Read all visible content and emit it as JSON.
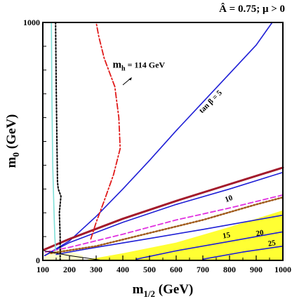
{
  "chart_data": {
    "type": "line",
    "title": "Â = 0.75; μ > 0",
    "xlabel": "m1/2 (GeV)",
    "ylabel": "m0 (GeV)",
    "xlim": [
      100,
      1000
    ],
    "ylim": [
      0,
      1000
    ],
    "x_ticks": [
      "100",
      "200",
      "300",
      "400",
      "500",
      "600",
      "700",
      "800",
      "900",
      "1000"
    ],
    "y_ticks": [
      "0",
      "1000"
    ],
    "grid": false,
    "legend": "none",
    "series": [
      {
        "name": "tan β = 5",
        "color": "#1f1fd6",
        "style": "solid",
        "points": [
          [
            107,
            20
          ],
          [
            200,
            82
          ],
          [
            300,
            185
          ],
          [
            400,
            300
          ],
          [
            500,
            420
          ],
          [
            600,
            545
          ],
          [
            700,
            665
          ],
          [
            800,
            785
          ],
          [
            900,
            905
          ],
          [
            960,
            1000
          ]
        ]
      },
      {
        "name": "10",
        "color": "#1f1fd6",
        "style": "solid",
        "points": [
          [
            107,
            20
          ],
          [
            200,
            75
          ],
          [
            400,
            160
          ],
          [
            600,
            235
          ],
          [
            800,
            300
          ],
          [
            1000,
            370
          ]
        ]
      },
      {
        "name": "15",
        "color": "#1f1fd6",
        "style": "solid",
        "points": [
          [
            150,
            25
          ],
          [
            300,
            55
          ],
          [
            500,
            92
          ],
          [
            700,
            130
          ],
          [
            1000,
            190
          ]
        ]
      },
      {
        "name": "20",
        "color": "#1f1fd6",
        "style": "solid",
        "points": [
          [
            450,
            5
          ],
          [
            600,
            40
          ],
          [
            800,
            80
          ],
          [
            1000,
            120
          ]
        ]
      },
      {
        "name": "25",
        "color": "#1f1fd6",
        "style": "solid",
        "points": [
          [
            700,
            5
          ],
          [
            850,
            35
          ],
          [
            1000,
            60
          ]
        ]
      },
      {
        "name": "",
        "color": "#a31b2c",
        "style": "solid-thick",
        "points": [
          [
            105,
            45
          ],
          [
            200,
            90
          ],
          [
            400,
            175
          ],
          [
            600,
            250
          ],
          [
            800,
            320
          ],
          [
            1000,
            390
          ]
        ]
      },
      {
        "name": "",
        "color": "#e030e0",
        "style": "dashed",
        "points": [
          [
            110,
            35
          ],
          [
            200,
            55
          ],
          [
            400,
            110
          ],
          [
            600,
            170
          ],
          [
            800,
            220
          ],
          [
            1000,
            275
          ]
        ]
      },
      {
        "name": "",
        "color": "#a05a1a",
        "style": "dotted",
        "points": [
          [
            130,
            30
          ],
          [
            300,
            60
          ],
          [
            500,
            115
          ],
          [
            700,
            170
          ],
          [
            900,
            235
          ],
          [
            1000,
            265
          ]
        ]
      },
      {
        "name": "mh = 114 GeV",
        "color": "#e01a1a",
        "style": "dashdot",
        "points": [
          [
            280,
            90
          ],
          [
            300,
            160
          ],
          [
            330,
            250
          ],
          [
            365,
            360
          ],
          [
            390,
            470
          ],
          [
            385,
            600
          ],
          [
            370,
            730
          ],
          [
            330,
            850
          ],
          [
            310,
            940
          ],
          [
            300,
            1000
          ]
        ]
      },
      {
        "name": "",
        "color": "#000000",
        "style": "dotted",
        "points": [
          [
            148,
            1000
          ],
          [
            150,
            750
          ],
          [
            153,
            500
          ],
          [
            155,
            330
          ],
          [
            158,
            300
          ],
          [
            168,
            270
          ],
          [
            162,
            200
          ],
          [
            165,
            100
          ],
          [
            165,
            0
          ]
        ]
      },
      {
        "name": "",
        "color": "#7fe0d8",
        "style": "solid",
        "points": [
          [
            132,
            1000
          ],
          [
            134,
            700
          ],
          [
            137,
            400
          ],
          [
            142,
            200
          ],
          [
            145,
            100
          ],
          [
            148,
            40
          ]
        ]
      },
      {
        "name": "",
        "color": "#000000",
        "style": "thin",
        "points": [
          [
            105,
            40
          ],
          [
            200,
            20
          ],
          [
            325,
            0
          ]
        ]
      }
    ],
    "regions": [
      {
        "name": "",
        "color": "#ffff33",
        "points": [
          [
            250,
            0
          ],
          [
            400,
            30
          ],
          [
            600,
            75
          ],
          [
            800,
            140
          ],
          [
            1000,
            210
          ],
          [
            1000,
            0
          ]
        ]
      },
      {
        "name": "",
        "color": "#ffffcc",
        "points": [
          [
            105,
            0
          ],
          [
            105,
            25
          ],
          [
            160,
            55
          ],
          [
            250,
            20
          ],
          [
            250,
            0
          ]
        ]
      }
    ],
    "annotations": [
      {
        "text": "tan β = 5",
        "x": 735,
        "y": 660,
        "rotation": -45
      },
      {
        "text": "10",
        "x": 800,
        "y": 250,
        "rotation": -20
      },
      {
        "text": "15",
        "x": 790,
        "y": 95,
        "rotation": -10
      },
      {
        "text": "20",
        "x": 915,
        "y": 105,
        "rotation": -10
      },
      {
        "text": "25",
        "x": 960,
        "y": 62,
        "rotation": -10
      },
      {
        "text": "m",
        "sub": "h",
        "rest": " = 114 GeV",
        "x": 460,
        "y": 810,
        "rotation": 0
      }
    ]
  }
}
